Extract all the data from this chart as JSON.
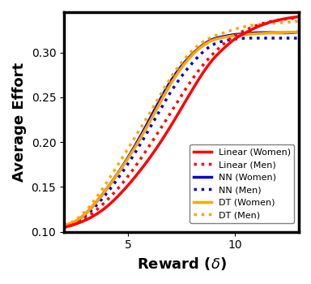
{
  "x_min": 2.0,
  "x_max": 13.0,
  "y_min": 0.1,
  "y_max": 0.345,
  "xlabel": "Reward ($\\delta$)",
  "ylabel": "Average Effort",
  "yticks": [
    0.1,
    0.15,
    0.2,
    0.25,
    0.3
  ],
  "xticks": [
    5,
    10
  ],
  "colors": {
    "linear": "#ff0000",
    "nn": "#0000cc",
    "dt": "#ffa500"
  },
  "curves": {
    "nn_women": {
      "color": "#0000cc",
      "linestyle": "solid",
      "linewidth": 2.5,
      "label": "NN (Women)",
      "points_x": [
        2.0,
        3.0,
        4.0,
        5.0,
        6.0,
        7.0,
        8.0,
        9.0,
        9.5,
        10.0,
        10.5,
        11.0,
        12.0,
        13.0
      ],
      "points_y": [
        0.107,
        0.12,
        0.148,
        0.183,
        0.225,
        0.268,
        0.298,
        0.315,
        0.318,
        0.32,
        0.321,
        0.322,
        0.322,
        0.323
      ]
    },
    "nn_men": {
      "color": "#0000cc",
      "linestyle": "dotted",
      "linewidth": 2.5,
      "label": "NN (Men)",
      "points_x": [
        2.0,
        3.0,
        4.0,
        5.0,
        6.0,
        7.0,
        8.0,
        9.0,
        9.5,
        10.0,
        10.5,
        11.0,
        12.0,
        13.0
      ],
      "points_y": [
        0.107,
        0.118,
        0.143,
        0.176,
        0.215,
        0.256,
        0.288,
        0.309,
        0.313,
        0.315,
        0.316,
        0.316,
        0.316,
        0.316
      ]
    },
    "dt_women": {
      "color": "#ffa500",
      "linestyle": "solid",
      "linewidth": 2.5,
      "label": "DT (Women)",
      "points_x": [
        2.0,
        3.0,
        4.0,
        5.0,
        6.0,
        7.0,
        8.0,
        9.0,
        9.5,
        10.0,
        10.5,
        11.0,
        12.0,
        13.0
      ],
      "points_y": [
        0.108,
        0.12,
        0.148,
        0.182,
        0.222,
        0.265,
        0.297,
        0.314,
        0.317,
        0.319,
        0.32,
        0.321,
        0.322,
        0.323
      ]
    },
    "dt_men": {
      "color": "#ffa500",
      "linestyle": "dotted",
      "linewidth": 2.5,
      "label": "DT (Men)",
      "points_x": [
        2.0,
        3.0,
        4.0,
        5.0,
        6.0,
        7.0,
        8.0,
        9.0,
        9.5,
        10.0,
        10.5,
        11.0,
        12.0,
        13.0
      ],
      "points_y": [
        0.108,
        0.123,
        0.155,
        0.193,
        0.232,
        0.272,
        0.302,
        0.318,
        0.322,
        0.326,
        0.329,
        0.331,
        0.333,
        0.335
      ]
    },
    "linear_women": {
      "color": "#ff0000",
      "linestyle": "solid",
      "linewidth": 2.5,
      "label": "Linear (Women)",
      "points_x": [
        2.0,
        3.0,
        4.0,
        5.0,
        6.0,
        7.0,
        8.0,
        9.0,
        9.5,
        10.0,
        10.5,
        11.0,
        12.0,
        13.0
      ],
      "points_y": [
        0.105,
        0.113,
        0.128,
        0.152,
        0.182,
        0.218,
        0.258,
        0.293,
        0.305,
        0.315,
        0.322,
        0.328,
        0.336,
        0.34
      ]
    },
    "linear_men": {
      "color": "#ff0000",
      "linestyle": "dotted",
      "linewidth": 2.5,
      "label": "Linear (Men)",
      "points_x": [
        2.0,
        3.0,
        4.0,
        5.0,
        6.0,
        7.0,
        8.0,
        9.0,
        9.5,
        10.0,
        10.5,
        11.0,
        12.0,
        13.0
      ],
      "points_y": [
        0.105,
        0.115,
        0.135,
        0.162,
        0.196,
        0.233,
        0.27,
        0.299,
        0.31,
        0.319,
        0.325,
        0.33,
        0.336,
        0.339
      ]
    }
  },
  "legend_loc": "lower right",
  "legend_fontsize": 8,
  "axis_label_fontsize": 13,
  "tick_fontsize": 10,
  "background_color": "#ffffff",
  "border_color": "#000000",
  "border_linewidth": 2.5
}
